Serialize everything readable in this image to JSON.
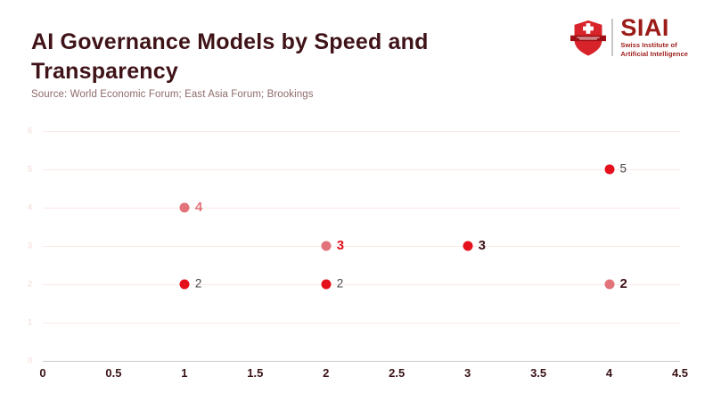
{
  "header": {
    "title": "AI Governance Models by Speed and Transparency",
    "source": "Source: World Economic Forum; East Asia Forum; Brookings"
  },
  "logo": {
    "name": "SIAI",
    "subtitle_line1": "Swiss Institute of",
    "subtitle_line2": "Artificial Intelligence",
    "brand_red": "#9b1b17",
    "shield_red": "#d8232a",
    "shield_band_red": "#9e1016"
  },
  "chart_data": {
    "type": "scatter",
    "title": "AI Governance Models by Speed and Transparency",
    "source": "Source: World Economic Forum; East Asia Forum; Brookings",
    "xlabel": "",
    "ylabel": "",
    "xlim": [
      0,
      4.5
    ],
    "ylim": [
      0,
      6
    ],
    "x_tick_labels": [
      "0",
      "0.5",
      "1",
      "1.5",
      "2",
      "2.5",
      "3",
      "3.5",
      "4",
      "4.5"
    ],
    "y_tick_labels": [
      "0",
      "1",
      "2",
      "3",
      "4",
      "5",
      "6"
    ],
    "grid": true,
    "legend": false,
    "points": [
      {
        "x": 1,
        "y": 4,
        "label": "4",
        "dot_color": "salmon",
        "label_color": "salmon",
        "label_bold": true
      },
      {
        "x": 1,
        "y": 2,
        "label": "2",
        "dot_color": "red",
        "label_color": "gray",
        "label_bold": false
      },
      {
        "x": 2,
        "y": 3,
        "label": "3",
        "dot_color": "salmon",
        "label_color": "red",
        "label_bold": true
      },
      {
        "x": 2,
        "y": 2,
        "label": "2",
        "dot_color": "red",
        "label_color": "gray",
        "label_bold": false
      },
      {
        "x": 3,
        "y": 3,
        "label": "3",
        "dot_color": "red",
        "label_color": "dark",
        "label_bold": true
      },
      {
        "x": 4,
        "y": 5,
        "label": "5",
        "dot_color": "red",
        "label_color": "gray",
        "label_bold": false
      },
      {
        "x": 4,
        "y": 2,
        "label": "2",
        "dot_color": "salmon",
        "label_color": "dark",
        "label_bold": true
      }
    ],
    "colors": {
      "red": "#e4101c",
      "salmon": "#e2737a",
      "gray": "#454545",
      "dark": "#3f1318",
      "title": "#3f1318",
      "source_text": "#8f6b6b",
      "gridline": "#fbe9e6",
      "axis_line": "#cccccc",
      "y_tick": "#f3d7d3",
      "x_tick": "#3a1316"
    }
  }
}
